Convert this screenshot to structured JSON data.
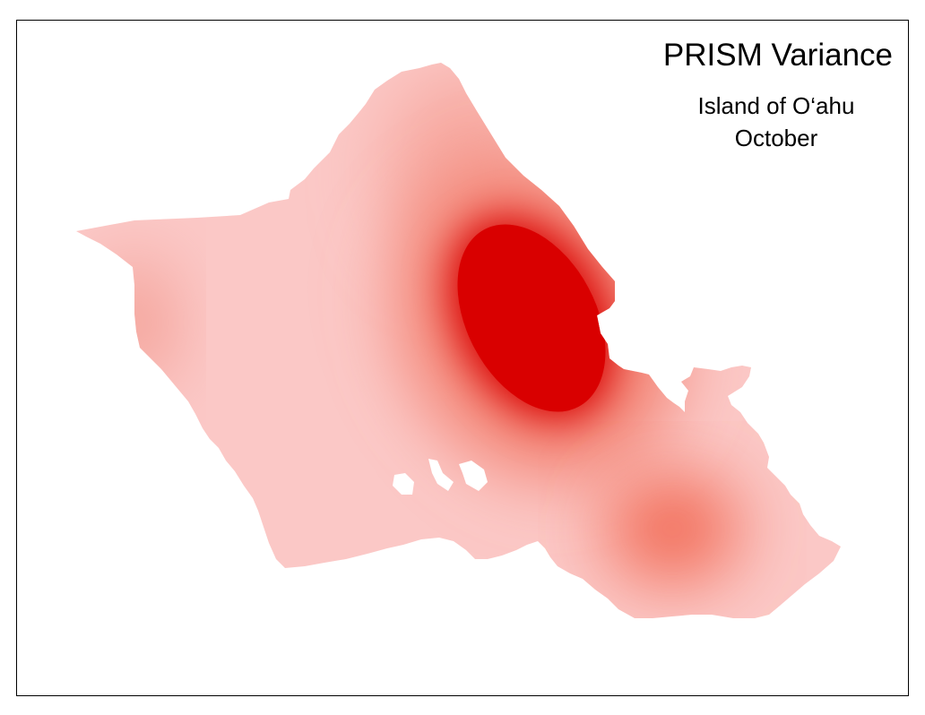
{
  "map": {
    "title": "PRISM Variance",
    "region": "Island of O‘ahu",
    "month": "October"
  },
  "colors": {
    "background": "#ffffff",
    "frame": "#000000",
    "low_variance": "#fbc8c6",
    "medium_variance": "#f27562",
    "high_variance": "#d90000"
  }
}
